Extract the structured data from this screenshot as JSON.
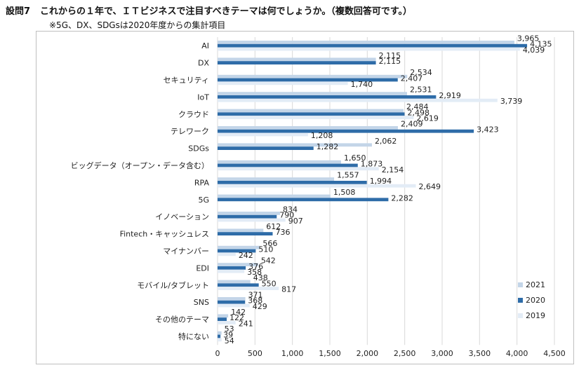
{
  "header": {
    "question_number": "設問7",
    "question_text": "これからの１年で、ＩＴビジネスで注目すべきテーマは何でしょうか。（複数回答可です。）",
    "note": "※5G、DX、SDGsは2020年度からの集計項目"
  },
  "colors": {
    "2021": "#c3d5e8",
    "2020": "#2e6ca8",
    "2019": "#e3ecf6",
    "grid": "#d9d9d9",
    "text": "#222222"
  },
  "chart_data": {
    "type": "bar",
    "orientation": "horizontal",
    "categories": [
      "AI",
      "DX",
      "セキュリティ",
      "IoT",
      "クラウド",
      "テレワーク",
      "SDGs",
      "ビッグデータ（オープン・データ含む）",
      "RPA",
      "5G",
      "イノベーション",
      "Fintech・キャッシュレス",
      "マイナンバー",
      "EDI",
      "モバイル/タブレット",
      "SNS",
      "その他のテーマ",
      "特にない"
    ],
    "series": [
      {
        "name": "2021",
        "values": [
          3965,
          2115,
          2534,
          2531,
          2484,
          2409,
          2062,
          1650,
          1557,
          1508,
          834,
          612,
          566,
          542,
          438,
          371,
          142,
          53
        ]
      },
      {
        "name": "2020",
        "values": [
          4135,
          2115,
          2407,
          2919,
          2498,
          3423,
          1282,
          1873,
          1994,
          2282,
          790,
          736,
          510,
          376,
          550,
          368,
          122,
          39
        ]
      },
      {
        "name": "2019",
        "values": [
          4039,
          null,
          1740,
          3739,
          2619,
          1208,
          null,
          2154,
          2649,
          null,
          907,
          null,
          242,
          358,
          817,
          429,
          241,
          54
        ]
      }
    ],
    "xlim": [
      0,
      4500
    ],
    "xticks": [
      0,
      500,
      1000,
      1500,
      2000,
      2500,
      3000,
      3500,
      4000,
      4500
    ],
    "xtick_labels": [
      "0",
      "500",
      "1,000",
      "1,500",
      "2,000",
      "2,500",
      "3,000",
      "3,500",
      "4,000",
      "4,500"
    ],
    "legend": [
      "2021",
      "2020",
      "2019"
    ],
    "legend_position": "bottom-right",
    "grid": true
  }
}
